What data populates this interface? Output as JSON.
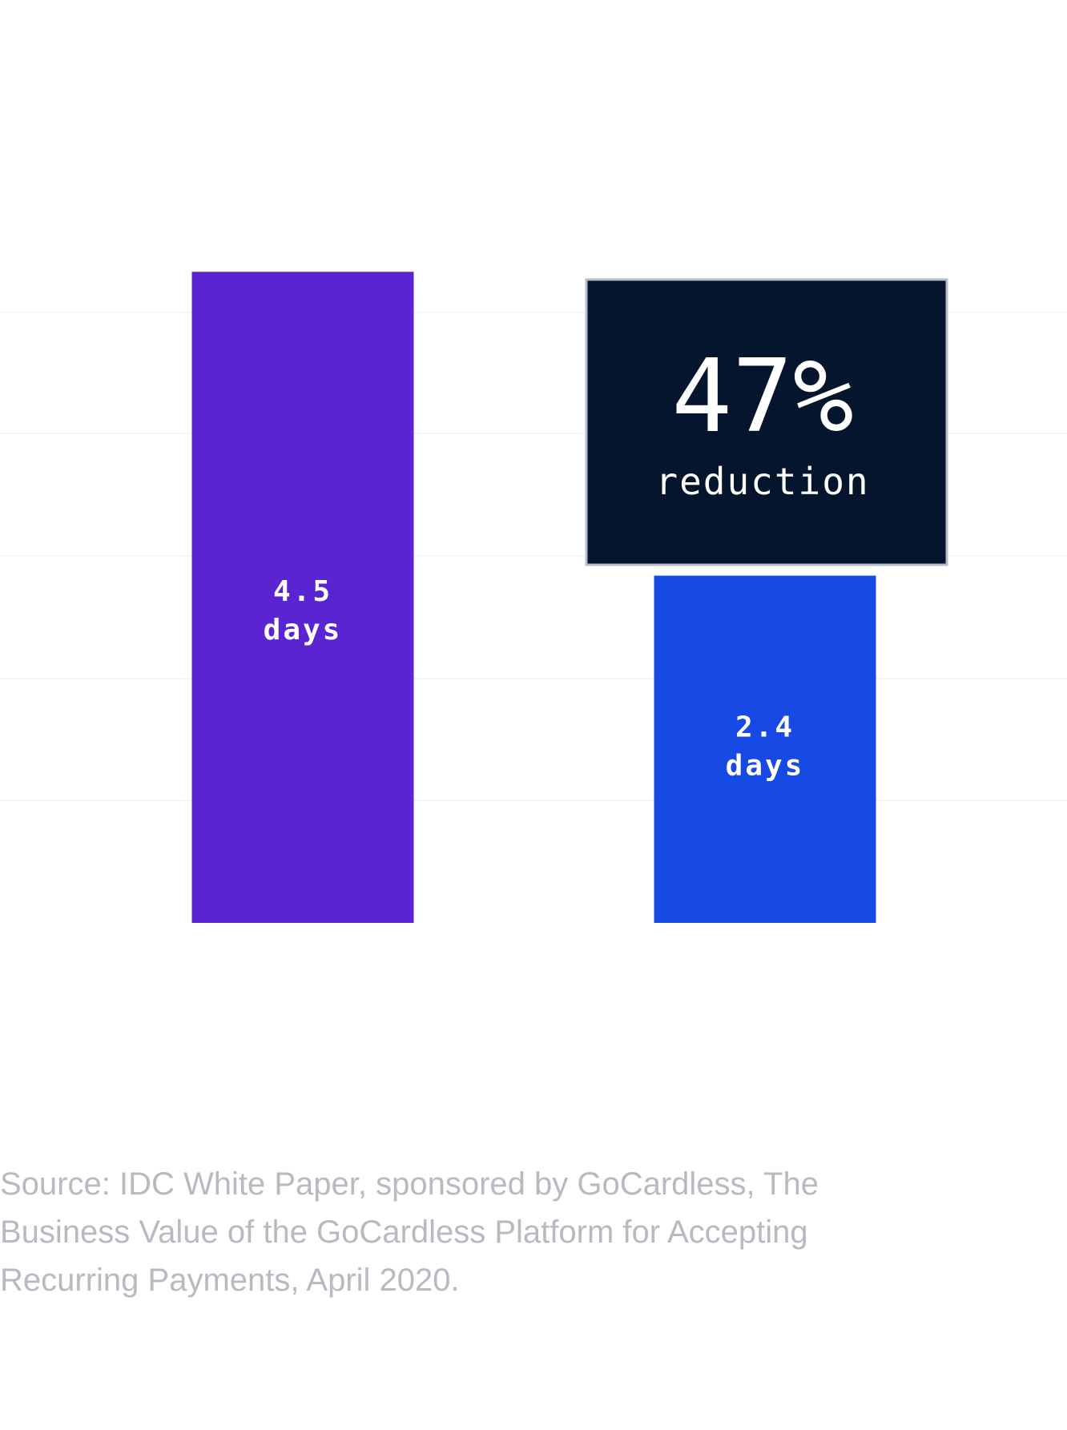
{
  "chart_data": {
    "type": "bar",
    "categories": [
      "",
      ""
    ],
    "values": [
      4.5,
      2.4
    ],
    "value_labels": [
      [
        "4.5",
        "days"
      ],
      [
        "2.4",
        "days"
      ]
    ],
    "colors": [
      "#5b24d2",
      "#1749e4"
    ],
    "ylim": [
      0,
      5
    ],
    "grid": true,
    "title": "",
    "xlabel": "",
    "ylabel": "",
    "callout": {
      "value": "47%",
      "caption": "reduction",
      "background": "#05152e",
      "border": "#b7bcc8"
    }
  },
  "source_text": "Source: IDC White Paper, sponsored by GoCardless, The Business Value of the GoCardless Platform for Accepting Recurring Payments, April 2020."
}
